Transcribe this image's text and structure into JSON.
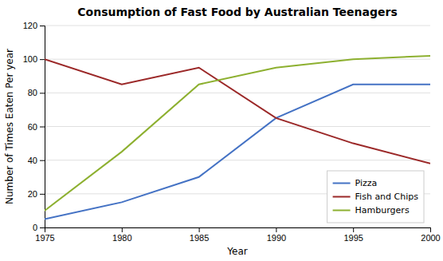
{
  "chart_data": {
    "type": "line",
    "title": "Consumption of Fast Food by Australian Teenagers",
    "xlabel": "Year",
    "ylabel": "Number of Times Eaten Per year",
    "x": [
      1975,
      1980,
      1985,
      1990,
      1995,
      2000
    ],
    "series": [
      {
        "name": "Pizza",
        "color": "#4472C4",
        "values": [
          5,
          15,
          30,
          65,
          85,
          85
        ]
      },
      {
        "name": "Fish and Chips",
        "color": "#9B2828",
        "values": [
          100,
          85,
          95,
          65,
          50,
          38
        ]
      },
      {
        "name": "Hamburgers",
        "color": "#8DB030",
        "values": [
          10,
          45,
          85,
          95,
          100,
          102
        ]
      }
    ],
    "xlim": [
      1975,
      2000
    ],
    "xticks": [
      1975,
      1980,
      1985,
      1990,
      1995,
      2000
    ],
    "ylim": [
      0,
      120
    ],
    "yticks": [
      0,
      20,
      40,
      60,
      80,
      100,
      120
    ],
    "grid": "y",
    "legend": "lower right"
  }
}
